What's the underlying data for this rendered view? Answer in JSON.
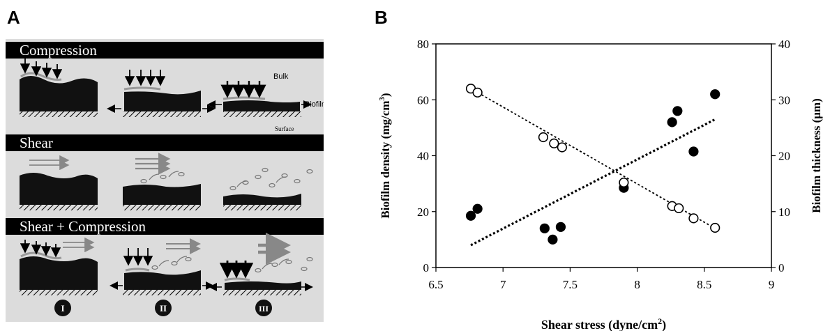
{
  "panel_a": {
    "letter": "A",
    "rows": [
      {
        "label": "Compression"
      },
      {
        "label": "Shear"
      },
      {
        "label": "Shear + Compression"
      }
    ],
    "annotations": {
      "bulk": "Bulk",
      "biofilm": "Biofilm",
      "surface": "Surface"
    },
    "stages": [
      "I",
      "II",
      "III"
    ]
  },
  "panel_b": {
    "letter": "B"
  },
  "chart_data": {
    "type": "scatter",
    "xlabel": "Shear stress (dyne/cm",
    "xlabel_sup": "2",
    "xlabel_end": ")",
    "ylabel": "Biofilm density (mg/cm",
    "ylabel_sup": "3",
    "ylabel_end": ")",
    "y2label": "Biofilm thickness (μm)",
    "xlim": [
      6.5,
      9
    ],
    "ylim": [
      0,
      80
    ],
    "y2lim": [
      0,
      40
    ],
    "x_ticks": [
      "6.5",
      "7",
      "7.5",
      "8",
      "8.5",
      "9"
    ],
    "y_ticks": [
      "0",
      "20",
      "40",
      "60",
      "80"
    ],
    "y2_ticks": [
      "0",
      "10",
      "20",
      "30",
      "40"
    ],
    "series": [
      {
        "marker": "filled-circle",
        "axis": "left",
        "x": [
          6.76,
          6.81,
          7.31,
          7.37,
          7.43,
          7.9,
          8.26,
          8.3,
          8.42,
          8.58
        ],
        "y": [
          18.5,
          21,
          14,
          10,
          14.5,
          28.5,
          52,
          56,
          41.5,
          62
        ]
      },
      {
        "marker": "open-circle",
        "axis": "right",
        "x": [
          6.76,
          6.81,
          7.3,
          7.38,
          7.44,
          7.9,
          8.26,
          8.31,
          8.42,
          8.58
        ],
        "y": [
          32,
          31.3,
          23.3,
          22.2,
          21.5,
          15.2,
          11,
          10.6,
          8.8,
          7.1
        ]
      }
    ],
    "trendlines": [
      {
        "style": "dotted-bold",
        "axis": "left",
        "x": [
          6.76,
          8.58
        ],
        "y": [
          8,
          53
        ]
      },
      {
        "style": "dotted-fine",
        "axis": "right",
        "x": [
          6.76,
          8.58
        ],
        "y": [
          32,
          7
        ]
      }
    ]
  }
}
